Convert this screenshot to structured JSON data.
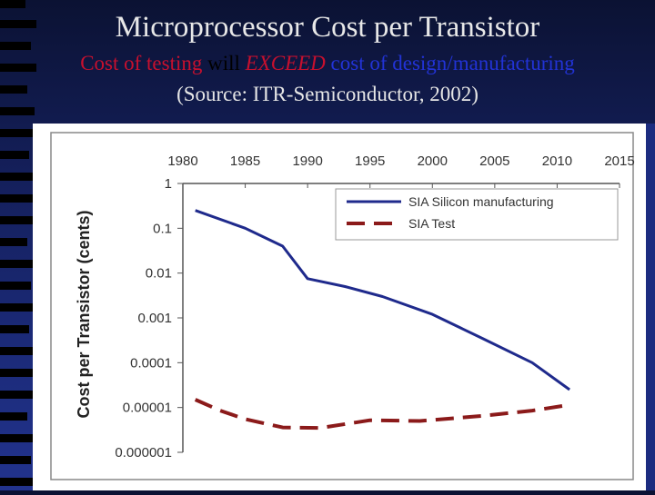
{
  "slide": {
    "title": "Microprocessor Cost per Transistor",
    "subtitle": {
      "part1": "Cost of testing",
      "part2": " will ",
      "part3": "EXCEED",
      "part4": " cost of design/manufacturing",
      "color_red": "#c8102e",
      "color_blue": "#2233d6",
      "color_dark": "#000000"
    },
    "source": "(Source: ITR-Semiconductor, 2002)"
  },
  "chart_data": {
    "type": "line",
    "title": "",
    "xlabel": "",
    "ylabel": "Cost per Transistor (cents)",
    "x_ticks": [
      1980,
      1985,
      1990,
      1995,
      2000,
      2005,
      2010,
      2015
    ],
    "y_ticks": [
      {
        "value": 1,
        "label": "1"
      },
      {
        "value": 0.1,
        "label": "0.1"
      },
      {
        "value": 0.01,
        "label": "0.01"
      },
      {
        "value": 0.001,
        "label": "0.001"
      },
      {
        "value": 0.0001,
        "label": "0.0001"
      },
      {
        "value": 1e-05,
        "label": "0.00001"
      },
      {
        "value": 1e-06,
        "label": "0.000001"
      }
    ],
    "xlim": [
      1980,
      2015
    ],
    "ylim": [
      1e-06,
      1
    ],
    "y_scale": "log",
    "series": [
      {
        "name": "SIA Silicon manufacturing",
        "color": "#1f2a8c",
        "dash": "solid",
        "x": [
          1981,
          1985,
          1988,
          1990,
          1993,
          1996,
          2000,
          2004,
          2008,
          2011
        ],
        "values": [
          0.25,
          0.1,
          0.04,
          0.0075,
          0.005,
          0.003,
          0.0012,
          0.00035,
          0.0001,
          2.5e-05
        ]
      },
      {
        "name": "SIA Test",
        "color": "#8b1a1a",
        "dash": "dashed",
        "x": [
          1981,
          1983,
          1985,
          1988,
          1991,
          1995,
          1999,
          2004,
          2008,
          2011
        ],
        "values": [
          1.5e-05,
          8.5e-06,
          5.5e-06,
          3.6e-06,
          3.5e-06,
          5.2e-06,
          5e-06,
          6.5e-06,
          8.5e-06,
          1.15e-05
        ]
      }
    ],
    "legend": "top-right"
  }
}
